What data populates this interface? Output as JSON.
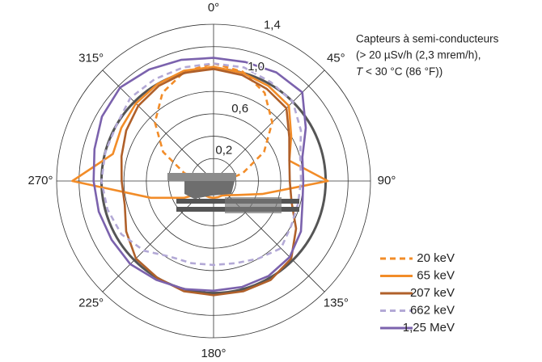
{
  "chart_data": {
    "type": "polar",
    "theta": [
      0,
      15,
      30,
      45,
      60,
      75,
      90,
      105,
      120,
      135,
      150,
      165,
      180,
      195,
      210,
      225,
      240,
      255,
      270,
      285,
      300,
      315,
      330,
      345
    ],
    "thetaticks": [
      {
        "value": 0,
        "label": "0°"
      },
      {
        "value": 45,
        "label": "45°"
      },
      {
        "value": 90,
        "label": "90°"
      },
      {
        "value": 135,
        "label": "135°"
      },
      {
        "value": 180,
        "label": "180°"
      },
      {
        "value": 225,
        "label": "225°"
      },
      {
        "value": 270,
        "label": "270°"
      },
      {
        "value": 315,
        "label": "315°"
      }
    ],
    "rlim": [
      0,
      1.4
    ],
    "rticks": [
      {
        "value": 0.2,
        "label": "0,2"
      },
      {
        "value": 0.4,
        "label": null
      },
      {
        "value": 0.6,
        "label": "0,6"
      },
      {
        "value": 0.8,
        "label": null
      },
      {
        "value": 1.0,
        "label": "1,0"
      },
      {
        "value": 1.2,
        "label": null
      },
      {
        "value": 1.4,
        "label": "1,4"
      }
    ],
    "reference_circle": 1.0,
    "annotation": [
      "Capteurs à semi-conducteurs",
      "(> 20 µSv/h (2,3 mrem/h),",
      [
        "T",
        " < 30 °C (86 °F))"
      ]
    ],
    "series": [
      {
        "name": "20 keV",
        "color": "#f28c28",
        "dashed": true,
        "values": [
          1.05,
          1.01,
          0.91,
          0.74,
          0.52,
          0.27,
          0.1,
          0.1,
          0.1,
          0.1,
          0.1,
          0.1,
          0.1,
          0.1,
          0.1,
          0.1,
          0.1,
          0.1,
          0.1,
          0.27,
          0.52,
          0.74,
          0.91,
          1.01
        ]
      },
      {
        "name": "65 keV",
        "color": "#f28c28",
        "dashed": false,
        "values": [
          1.02,
          1.0,
          0.98,
          0.95,
          0.8,
          0.7,
          1.02,
          0.45,
          0.25,
          0.18,
          0.15,
          0.15,
          0.15,
          0.15,
          0.15,
          0.15,
          0.3,
          0.58,
          1.26,
          0.93,
          0.95,
          0.98,
          1.0,
          1.02
        ]
      },
      {
        "name": "207 keV",
        "color": "#b0602a",
        "dashed": false,
        "values": [
          1.0,
          0.98,
          0.95,
          0.92,
          0.78,
          0.7,
          0.68,
          0.72,
          0.85,
          0.98,
          1.02,
          1.02,
          1.02,
          1.02,
          1.0,
          0.98,
          0.9,
          0.82,
          0.82,
          0.85,
          0.9,
          0.95,
          0.98,
          1.0
        ]
      },
      {
        "name": "662 keV",
        "color": "#b3a9d6",
        "dashed": true,
        "values": [
          1.05,
          1.05,
          1.02,
          1.0,
          0.9,
          0.8,
          0.78,
          0.78,
          0.8,
          0.85,
          0.8,
          0.76,
          0.75,
          0.76,
          0.78,
          0.88,
          0.95,
          0.98,
          1.0,
          1.0,
          1.0,
          1.05,
          1.05,
          1.05
        ]
      },
      {
        "name": "1,25 MeV",
        "color": "#7b62ad",
        "dashed": false,
        "values": [
          1.1,
          1.1,
          1.12,
          1.12,
          0.95,
          0.82,
          0.8,
          0.82,
          0.9,
          0.96,
          0.98,
          0.98,
          0.98,
          1.0,
          1.02,
          1.05,
          1.05,
          1.06,
          1.07,
          1.1,
          1.15,
          1.18,
          1.15,
          1.12
        ]
      }
    ]
  }
}
